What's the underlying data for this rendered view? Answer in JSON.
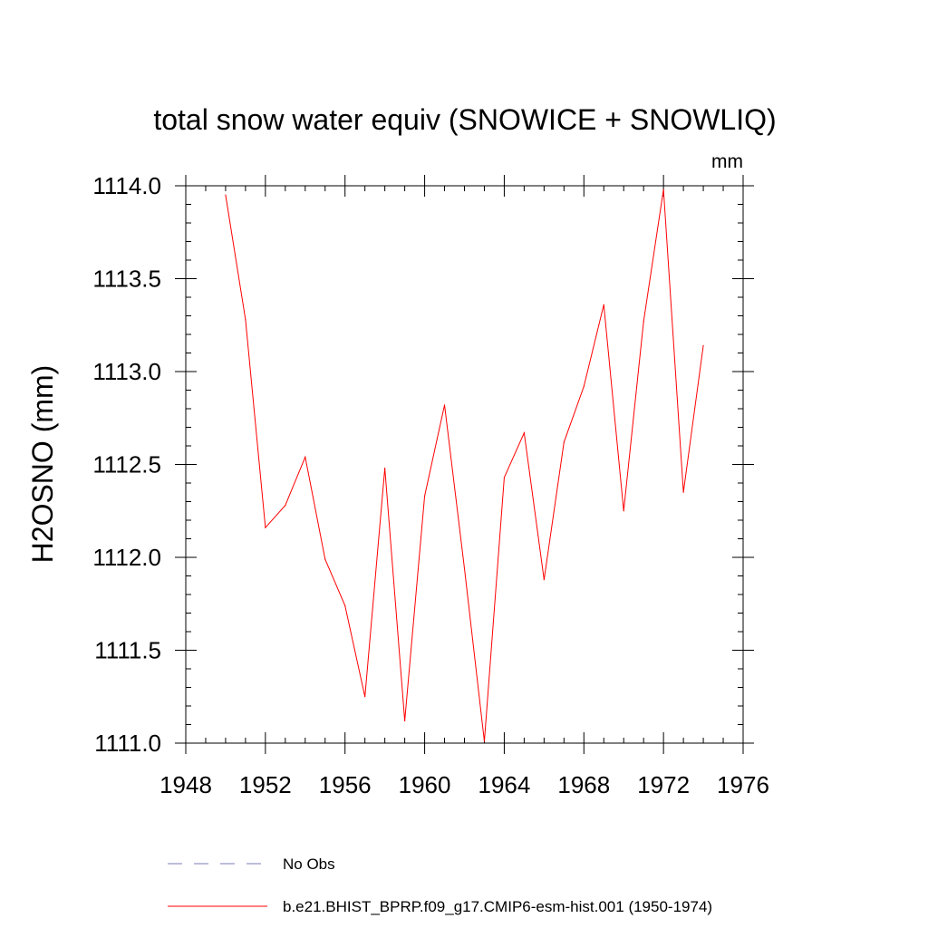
{
  "chart_data": {
    "type": "line",
    "title": "total snow water equiv (SNOWICE + SNOWLIQ)",
    "units_label": "mm",
    "xlabel": "",
    "ylabel": "H2OSNO  (mm)",
    "xlim": [
      1948,
      1976
    ],
    "ylim": [
      1111.0,
      1114.0
    ],
    "x_major_ticks": [
      1948,
      1952,
      1956,
      1960,
      1964,
      1968,
      1972,
      1976
    ],
    "x_minor_step": 1,
    "y_major_ticks": [
      1111.0,
      1111.5,
      1112.0,
      1112.5,
      1113.0,
      1113.5,
      1114.0
    ],
    "y_tick_labels": [
      "1111.0",
      "1111.5",
      "1112.0",
      "1112.5",
      "1113.0",
      "1113.5",
      "1114.0"
    ],
    "y_minor_step": 0.1,
    "grid": false,
    "series": [
      {
        "name": "b.e21.BHIST_BPRP.f09_g17.CMIP6-esm-hist.001 (1950-1974)",
        "color": "#ff0000",
        "style": "solid",
        "x": [
          1950,
          1951,
          1952,
          1953,
          1954,
          1955,
          1956,
          1957,
          1958,
          1959,
          1960,
          1961,
          1962,
          1963,
          1964,
          1965,
          1966,
          1967,
          1968,
          1969,
          1970,
          1971,
          1972,
          1973,
          1974
        ],
        "values": [
          1113.95,
          1113.28,
          1112.16,
          1112.28,
          1112.54,
          1111.99,
          1111.74,
          1111.25,
          1112.48,
          1111.12,
          1112.33,
          1112.82,
          1111.94,
          1111.01,
          1112.43,
          1112.67,
          1111.88,
          1112.62,
          1112.92,
          1113.36,
          1112.25,
          1113.27,
          1113.98,
          1112.35,
          1113.14
        ]
      }
    ],
    "legend": {
      "placement": "bottom",
      "entries": [
        {
          "label": "No Obs",
          "color": "#7b7bb8",
          "style": "dashed"
        },
        {
          "label": "b.e21.BHIST_BPRP.f09_g17.CMIP6-esm-hist.001 (1950-1974)",
          "color": "#ff0000",
          "style": "solid"
        }
      ]
    }
  }
}
